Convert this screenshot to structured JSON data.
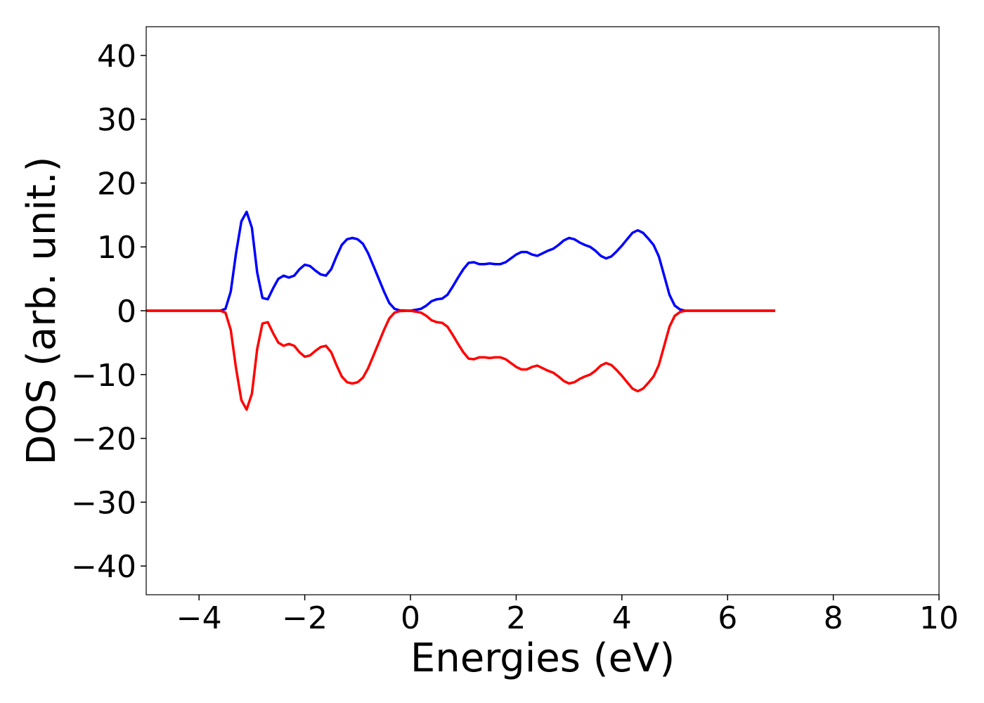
{
  "chart_data": {
    "type": "line",
    "xlabel": "Energies (eV)",
    "ylabel": "DOS (arb. unit.)",
    "x": [
      -5,
      -3.6,
      -3.5,
      -3.4,
      -3.3,
      -3.2,
      -3.1,
      -3.0,
      -2.9,
      -2.8,
      -2.7,
      -2.6,
      -2.5,
      -2.4,
      -2.3,
      -2.2,
      -2.1,
      -2.0,
      -1.9,
      -1.8,
      -1.7,
      -1.6,
      -1.5,
      -1.4,
      -1.3,
      -1.2,
      -1.1,
      -1.0,
      -0.9,
      -0.8,
      -0.7,
      -0.6,
      -0.5,
      -0.4,
      -0.3,
      -0.2,
      0,
      0.2,
      0.3,
      0.4,
      0.5,
      0.6,
      0.7,
      0.8,
      0.9,
      1.0,
      1.1,
      1.2,
      1.3,
      1.4,
      1.5,
      1.6,
      1.7,
      1.8,
      1.9,
      2.0,
      2.1,
      2.2,
      2.3,
      2.4,
      2.5,
      2.6,
      2.7,
      2.8,
      2.9,
      3.0,
      3.1,
      3.2,
      3.3,
      3.4,
      3.5,
      3.6,
      3.7,
      3.8,
      3.9,
      4.0,
      4.1,
      4.2,
      4.3,
      4.4,
      4.5,
      4.6,
      4.7,
      4.8,
      4.9,
      5.0,
      5.1,
      5.2,
      6.9
    ],
    "series": [
      {
        "color": "#0000ff",
        "values": [
          0,
          0,
          0.3,
          3,
          9,
          14,
          15.5,
          13,
          6,
          2,
          1.8,
          3.5,
          5,
          5.5,
          5.2,
          5.5,
          6.5,
          7.2,
          7,
          6.3,
          5.7,
          5.5,
          6.5,
          8.5,
          10.3,
          11.2,
          11.4,
          11.2,
          10.5,
          9,
          7,
          5,
          3,
          1.2,
          0.3,
          0.05,
          0,
          0.3,
          0.8,
          1.5,
          1.8,
          1.9,
          2.5,
          3.8,
          5.2,
          6.5,
          7.5,
          7.6,
          7.3,
          7.3,
          7.4,
          7.3,
          7.3,
          7.6,
          8.2,
          8.8,
          9.2,
          9.2,
          8.8,
          8.6,
          9,
          9.4,
          9.7,
          10.3,
          11,
          11.4,
          11.2,
          10.7,
          10.3,
          10,
          9.4,
          8.6,
          8.2,
          8.5,
          9.3,
          10.2,
          11.2,
          12.2,
          12.6,
          12.2,
          11.3,
          10.3,
          8.5,
          5.5,
          2.5,
          0.8,
          0.2,
          0,
          0
        ]
      },
      {
        "color": "#ff0000",
        "values": [
          0,
          0,
          -0.3,
          -3,
          -9,
          -14,
          -15.5,
          -13,
          -6,
          -2,
          -1.8,
          -3.5,
          -5,
          -5.5,
          -5.2,
          -5.5,
          -6.5,
          -7.2,
          -7,
          -6.3,
          -5.7,
          -5.5,
          -6.5,
          -8.5,
          -10.3,
          -11.2,
          -11.4,
          -11.2,
          -10.5,
          -9,
          -7,
          -5,
          -3,
          -1.2,
          -0.3,
          -0.05,
          0,
          -0.3,
          -0.8,
          -1.5,
          -1.8,
          -1.9,
          -2.5,
          -3.8,
          -5.2,
          -6.5,
          -7.5,
          -7.6,
          -7.3,
          -7.3,
          -7.4,
          -7.3,
          -7.3,
          -7.6,
          -8.2,
          -8.8,
          -9.2,
          -9.2,
          -8.8,
          -8.6,
          -9,
          -9.4,
          -9.7,
          -10.3,
          -11,
          -11.4,
          -11.2,
          -10.7,
          -10.3,
          -10,
          -9.4,
          -8.6,
          -8.2,
          -8.5,
          -9.3,
          -10.2,
          -11.2,
          -12.2,
          -12.6,
          -12.2,
          -11.3,
          -10.3,
          -8.5,
          -5.5,
          -2.5,
          -0.8,
          -0.2,
          0,
          0
        ]
      }
    ],
    "xlim": [
      -5,
      10
    ],
    "ylim": [
      -44.5,
      44.5
    ],
    "xticks": [
      {
        "value": -4,
        "label": "−4"
      },
      {
        "value": -2,
        "label": "−2"
      },
      0,
      2,
      4,
      6,
      8,
      10
    ],
    "yticks": [
      {
        "value": -40,
        "label": "−40"
      },
      {
        "value": -30,
        "label": "−30"
      },
      {
        "value": -20,
        "label": "−20"
      },
      {
        "value": -10,
        "label": "−10"
      },
      0,
      10,
      20,
      30,
      40
    ]
  }
}
